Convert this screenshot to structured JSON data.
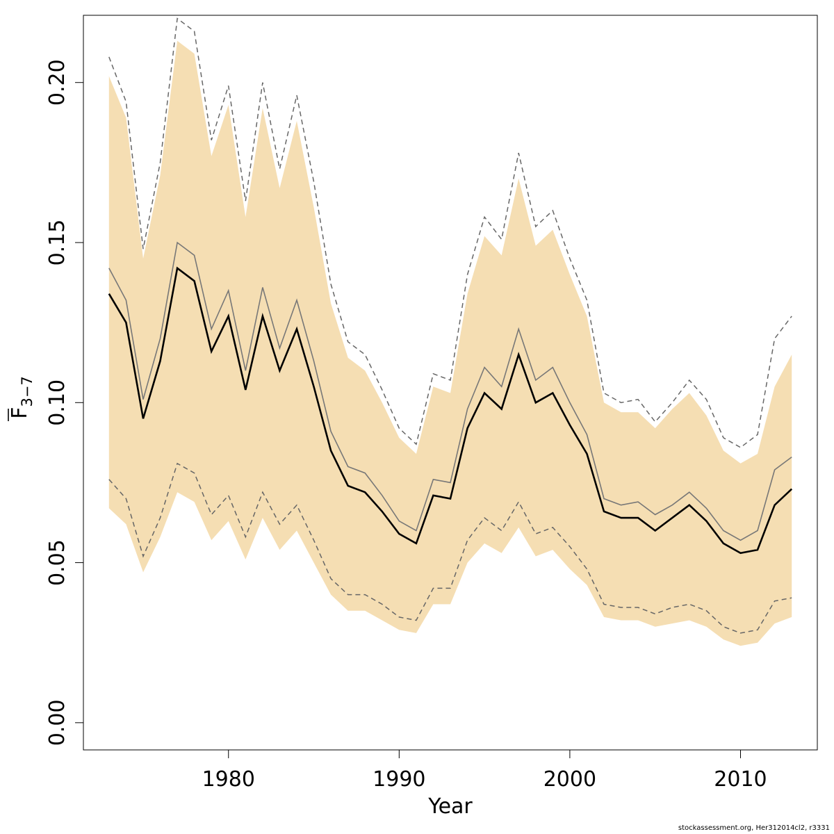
{
  "chart_data": {
    "type": "line",
    "xlabel": "Year",
    "ylabel": "F",
    "ylabel_sub": "3−7",
    "xlim": [
      1971.5,
      2014.5
    ],
    "ylim": [
      -0.0085,
      0.221
    ],
    "x_ticks": [
      1980,
      1990,
      2000,
      2010
    ],
    "y_ticks": [
      0.0,
      0.05,
      0.1,
      0.15,
      0.2
    ],
    "y_tick_labels": [
      "0.00",
      "0.05",
      "0.10",
      "0.15",
      "0.20"
    ],
    "grid": false,
    "colors": {
      "band": "#f5deb3",
      "estimate": "#000000",
      "median": "#777777",
      "dashed": "#666666"
    },
    "x": [
      1973,
      1974,
      1975,
      1976,
      1977,
      1978,
      1979,
      1980,
      1981,
      1982,
      1983,
      1984,
      1985,
      1986,
      1987,
      1988,
      1989,
      1990,
      1991,
      1992,
      1993,
      1994,
      1995,
      1996,
      1997,
      1998,
      1999,
      2000,
      2001,
      2002,
      2003,
      2004,
      2005,
      2006,
      2007,
      2008,
      2009,
      2010,
      2011,
      2012,
      2013
    ],
    "series": [
      {
        "role": "band_upper",
        "values": [
          0.202,
          0.189,
          0.145,
          0.171,
          0.213,
          0.209,
          0.177,
          0.193,
          0.158,
          0.192,
          0.167,
          0.188,
          0.161,
          0.131,
          0.114,
          0.11,
          0.1,
          0.089,
          0.084,
          0.105,
          0.103,
          0.134,
          0.152,
          0.146,
          0.17,
          0.149,
          0.154,
          0.14,
          0.127,
          0.1,
          0.097,
          0.097,
          0.092,
          0.098,
          0.103,
          0.096,
          0.085,
          0.081,
          0.084,
          0.105,
          0.115
        ]
      },
      {
        "role": "band_lower",
        "values": [
          0.067,
          0.062,
          0.047,
          0.058,
          0.072,
          0.069,
          0.057,
          0.063,
          0.051,
          0.064,
          0.054,
          0.06,
          0.05,
          0.04,
          0.035,
          0.035,
          0.032,
          0.029,
          0.028,
          0.037,
          0.037,
          0.05,
          0.056,
          0.053,
          0.061,
          0.052,
          0.054,
          0.048,
          0.043,
          0.033,
          0.032,
          0.032,
          0.03,
          0.031,
          0.032,
          0.03,
          0.026,
          0.024,
          0.025,
          0.031,
          0.033
        ]
      },
      {
        "role": "estimate",
        "values": [
          0.134,
          0.125,
          0.095,
          0.113,
          0.142,
          0.138,
          0.116,
          0.127,
          0.104,
          0.127,
          0.11,
          0.123,
          0.105,
          0.085,
          0.074,
          0.072,
          0.066,
          0.059,
          0.056,
          0.071,
          0.07,
          0.092,
          0.103,
          0.098,
          0.115,
          0.1,
          0.103,
          0.093,
          0.084,
          0.066,
          0.064,
          0.064,
          0.06,
          0.064,
          0.068,
          0.063,
          0.056,
          0.053,
          0.054,
          0.068,
          0.073
        ]
      },
      {
        "role": "median",
        "values": [
          0.142,
          0.132,
          0.101,
          0.12,
          0.15,
          0.146,
          0.123,
          0.135,
          0.11,
          0.136,
          0.117,
          0.132,
          0.113,
          0.091,
          0.08,
          0.078,
          0.071,
          0.063,
          0.06,
          0.076,
          0.075,
          0.098,
          0.111,
          0.105,
          0.123,
          0.107,
          0.111,
          0.1,
          0.09,
          0.07,
          0.068,
          0.069,
          0.065,
          0.068,
          0.072,
          0.067,
          0.06,
          0.057,
          0.06,
          0.079,
          0.083
        ]
      },
      {
        "role": "dashed_upper",
        "values": [
          0.208,
          0.194,
          0.148,
          0.175,
          0.22,
          0.216,
          0.182,
          0.199,
          0.163,
          0.2,
          0.173,
          0.196,
          0.169,
          0.137,
          0.119,
          0.115,
          0.104,
          0.092,
          0.087,
          0.109,
          0.107,
          0.14,
          0.158,
          0.151,
          0.178,
          0.155,
          0.16,
          0.145,
          0.132,
          0.103,
          0.1,
          0.101,
          0.094,
          0.1,
          0.107,
          0.101,
          0.089,
          0.086,
          0.09,
          0.12,
          0.127
        ]
      },
      {
        "role": "dashed_lower",
        "values": [
          0.076,
          0.07,
          0.052,
          0.064,
          0.081,
          0.078,
          0.065,
          0.071,
          0.058,
          0.072,
          0.062,
          0.068,
          0.057,
          0.045,
          0.04,
          0.04,
          0.037,
          0.033,
          0.032,
          0.042,
          0.042,
          0.057,
          0.064,
          0.06,
          0.069,
          0.059,
          0.061,
          0.055,
          0.048,
          0.037,
          0.036,
          0.036,
          0.034,
          0.036,
          0.037,
          0.035,
          0.03,
          0.028,
          0.029,
          0.038,
          0.039
        ]
      }
    ]
  },
  "footer": "stockassessment.org, Her312014cl2, r3331"
}
